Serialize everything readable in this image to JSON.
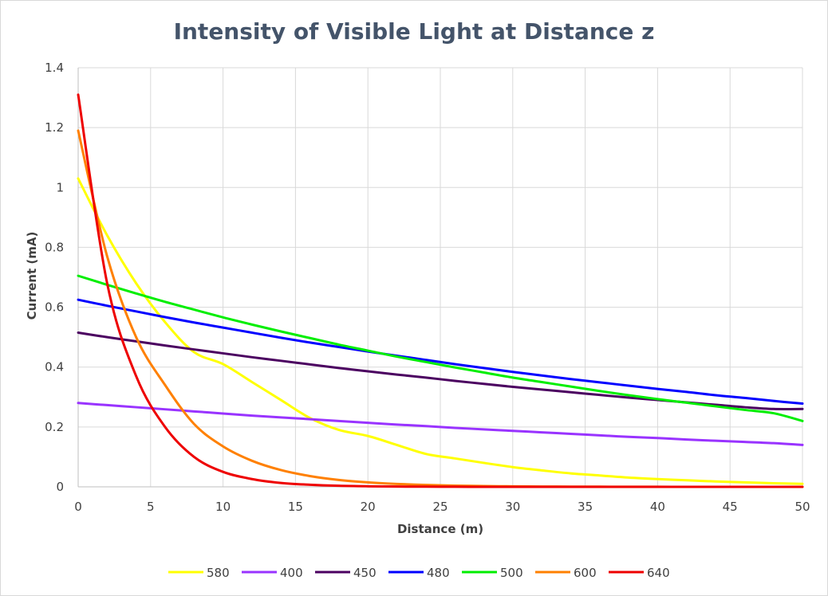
{
  "chart_data": {
    "type": "line",
    "title": "Intensity of Visible Light at Distance z",
    "xlabel": "Distance (m)",
    "ylabel": "Current (mA)",
    "xlim": [
      0,
      50
    ],
    "ylim": [
      0,
      1.4
    ],
    "x_ticks": [
      "0",
      "5",
      "10",
      "15",
      "20",
      "25",
      "30",
      "35",
      "40",
      "45",
      "50"
    ],
    "y_ticks": [
      "0",
      "0.2",
      "0.4",
      "0.6",
      "0.8",
      "1",
      "1.2",
      "1.4"
    ],
    "grid": true,
    "legend_position": "bottom",
    "x": [
      0,
      2,
      4,
      6,
      8,
      10,
      12,
      14,
      16,
      18,
      20,
      22,
      24,
      26,
      28,
      30,
      32,
      34,
      36,
      38,
      40,
      42,
      44,
      46,
      48,
      50
    ],
    "series": [
      {
        "name": "580",
        "color": "#ffff00",
        "values": [
          1.03,
          0.84,
          0.68,
          0.55,
          0.45,
          0.41,
          0.35,
          0.29,
          0.23,
          0.19,
          0.17,
          0.14,
          0.11,
          0.095,
          0.08,
          0.066,
          0.055,
          0.045,
          0.038,
          0.031,
          0.026,
          0.022,
          0.018,
          0.015,
          0.012,
          0.01
        ]
      },
      {
        "name": "400",
        "color": "#9933ff",
        "values": [
          0.28,
          0.273,
          0.266,
          0.259,
          0.252,
          0.245,
          0.238,
          0.232,
          0.226,
          0.22,
          0.214,
          0.208,
          0.203,
          0.197,
          0.192,
          0.187,
          0.182,
          0.177,
          0.172,
          0.167,
          0.163,
          0.158,
          0.154,
          0.15,
          0.146,
          0.14
        ]
      },
      {
        "name": "450",
        "color": "#4b0060",
        "values": [
          0.515,
          0.5,
          0.486,
          0.472,
          0.459,
          0.446,
          0.433,
          0.421,
          0.409,
          0.397,
          0.386,
          0.375,
          0.365,
          0.354,
          0.344,
          0.334,
          0.325,
          0.316,
          0.307,
          0.298,
          0.29,
          0.282,
          0.274,
          0.266,
          0.26,
          0.26
        ]
      },
      {
        "name": "480",
        "color": "#0000ff",
        "values": [
          0.625,
          0.605,
          0.586,
          0.567,
          0.549,
          0.532,
          0.515,
          0.498,
          0.482,
          0.467,
          0.452,
          0.438,
          0.424,
          0.41,
          0.397,
          0.384,
          0.372,
          0.36,
          0.349,
          0.338,
          0.327,
          0.317,
          0.306,
          0.297,
          0.287,
          0.278
        ]
      },
      {
        "name": "500",
        "color": "#00ee00",
        "values": [
          0.705,
          0.675,
          0.646,
          0.618,
          0.592,
          0.566,
          0.542,
          0.519,
          0.497,
          0.475,
          0.455,
          0.435,
          0.417,
          0.399,
          0.382,
          0.365,
          0.35,
          0.335,
          0.32,
          0.306,
          0.293,
          0.281,
          0.269,
          0.257,
          0.246,
          0.22
        ]
      },
      {
        "name": "600",
        "color": "#ff8000",
        "values": [
          1.19,
          0.77,
          0.5,
          0.34,
          0.21,
          0.135,
          0.087,
          0.056,
          0.036,
          0.023,
          0.015,
          0.0098,
          0.0063,
          0.0041,
          0.0026,
          0.0017,
          0.0011,
          0.0007,
          0.0005,
          0.0003,
          0.0002,
          0.0001,
          0.0001,
          0.0,
          0.0,
          0.0
        ]
      },
      {
        "name": "640",
        "color": "#ee0000",
        "values": [
          1.31,
          0.68,
          0.37,
          0.2,
          0.1,
          0.05,
          0.026,
          0.013,
          0.007,
          0.0035,
          0.0018,
          0.0009,
          0.0005,
          0.0002,
          0.0001,
          0.0001,
          0.0,
          0.0,
          0.0,
          0.0,
          0.0,
          0.0,
          0.0,
          0.0,
          0.0,
          0.0
        ]
      }
    ]
  }
}
